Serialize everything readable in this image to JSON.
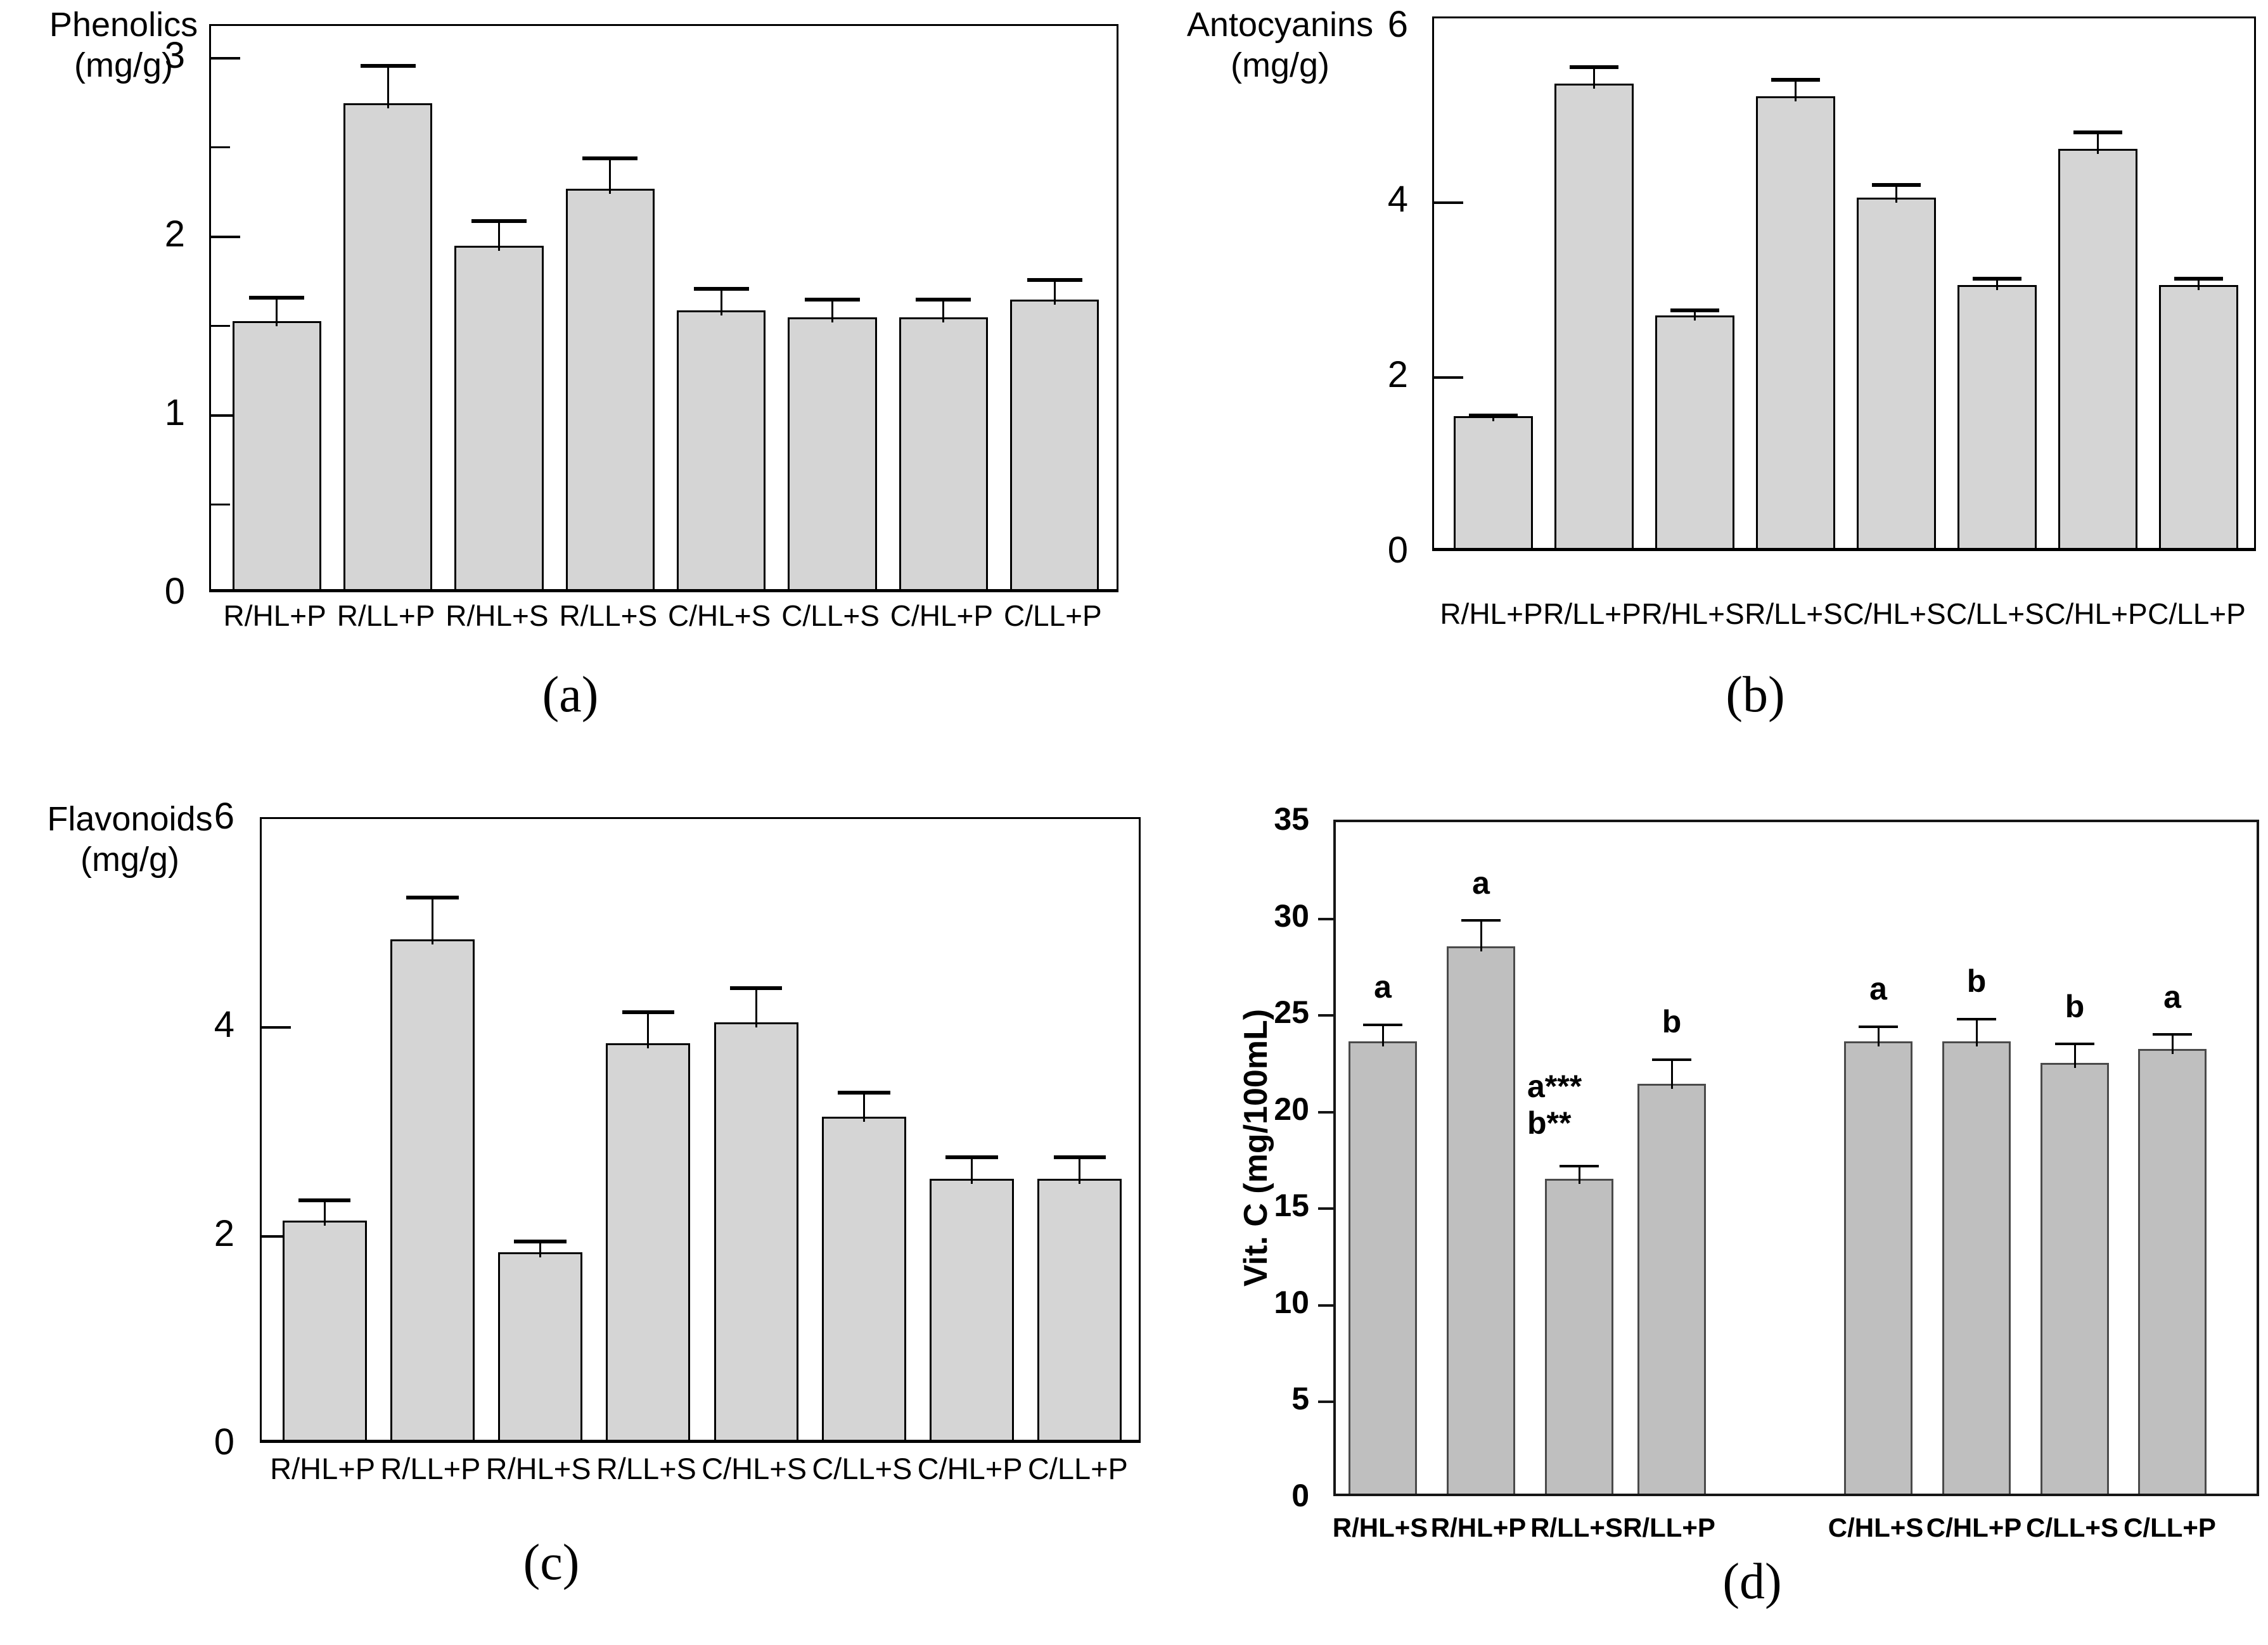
{
  "page": {
    "background": "#ffffff"
  },
  "chart_data": [
    {
      "id": "a",
      "type": "bar",
      "caption": "(a)",
      "ylabel": "Phenolics",
      "ylabel_units": "(mg/g)",
      "categories": [
        "R/HL+P",
        "R/LL+P",
        "R/HL+S",
        "R/LL+S",
        "C/HL+S",
        "C/LL+S",
        "C/HL+P",
        "C/LL+P"
      ],
      "values": [
        1.5,
        2.72,
        1.92,
        2.24,
        1.56,
        1.52,
        1.52,
        1.62
      ],
      "errors": [
        0.16,
        0.24,
        0.17,
        0.2,
        0.15,
        0.13,
        0.13,
        0.14
      ],
      "ylim": [
        0,
        3.18
      ],
      "yticks": [
        {
          "value": 3,
          "label": "3"
        },
        {
          "value": 2,
          "label": "2"
        },
        {
          "value": 1,
          "label": "1"
        },
        {
          "value": 0,
          "label": "0",
          "tick": false
        }
      ],
      "minor_ticks": [
        2.5,
        1.5,
        0.5
      ],
      "grid": false,
      "legend": null,
      "bar_fill": "#d5d5d5",
      "bar_border": "#000000"
    },
    {
      "id": "b",
      "type": "bar",
      "caption": "(b)",
      "ylabel": "Antocyanins",
      "ylabel_units": "(mg/g)",
      "categories": [
        "R/HL+P",
        "R/LL+P",
        "R/HL+S",
        "R/LL+S",
        "C/HL+S",
        "C/LL+S",
        "C/HL+P",
        "C/LL+P"
      ],
      "values": [
        1.5,
        5.3,
        2.65,
        5.15,
        4.0,
        3.0,
        4.55,
        3.0
      ],
      "errors": [
        0.07,
        0.25,
        0.12,
        0.25,
        0.2,
        0.13,
        0.25,
        0.13
      ],
      "ylim": [
        0,
        6.1
      ],
      "yticks": [
        {
          "value": 6,
          "label": "6",
          "tick": false
        },
        {
          "value": 4,
          "label": "4"
        },
        {
          "value": 2,
          "label": "2"
        },
        {
          "value": 0,
          "label": "0",
          "tick": false
        }
      ],
      "minor_ticks": [],
      "grid": false,
      "legend": null,
      "bar_fill": "#d5d5d5",
      "bar_border": "#000000"
    },
    {
      "id": "c",
      "type": "bar",
      "caption": "(c)",
      "ylabel": "Flavonoids",
      "ylabel_units": "(mg/g)",
      "categories": [
        "R/HL+P",
        "R/LL+P",
        "R/HL+S",
        "R/LL+S",
        "C/HL+S",
        "C/LL+S",
        "C/HL+P",
        "C/LL+P"
      ],
      "values": [
        2.1,
        4.8,
        1.8,
        3.8,
        4.0,
        3.1,
        2.5,
        2.5
      ],
      "errors": [
        0.25,
        0.45,
        0.15,
        0.35,
        0.38,
        0.28,
        0.26,
        0.26
      ],
      "ylim": [
        0,
        6.0
      ],
      "yticks": [
        {
          "value": 6,
          "label": "6",
          "tick": false
        },
        {
          "value": 4,
          "label": "4"
        },
        {
          "value": 2,
          "label": "2"
        },
        {
          "value": 0,
          "label": "0",
          "tick": false
        }
      ],
      "minor_ticks": [],
      "grid": false,
      "legend": null,
      "bar_fill": "#d5d5d5",
      "bar_border": "#000000"
    },
    {
      "id": "d",
      "type": "bar",
      "caption": "(d)",
      "ylabel": "Vit. C (mg/100mL)",
      "ylabel_units": "",
      "categories": [
        "R/HL+S",
        "R/HL+P",
        "R/LL+S",
        "R/LL+P",
        "C/HL+S",
        "C/HL+P",
        "C/LL+S",
        "C/LL+P"
      ],
      "values": [
        23.4,
        28.3,
        16.3,
        21.2,
        23.4,
        23.4,
        22.3,
        23.0
      ],
      "errors": [
        1.1,
        1.6,
        0.9,
        1.5,
        1.0,
        1.4,
        1.2,
        1.0
      ],
      "annotations": [
        "a",
        "a",
        "a***\nb**",
        "b",
        "a",
        "b",
        "b",
        "a"
      ],
      "ylim": [
        0,
        35
      ],
      "yticks": [
        {
          "value": 35,
          "label": "35",
          "tick": false
        },
        {
          "value": 30,
          "label": "30"
        },
        {
          "value": 25,
          "label": "25"
        },
        {
          "value": 20,
          "label": "20"
        },
        {
          "value": 15,
          "label": "15"
        },
        {
          "value": 10,
          "label": "10"
        },
        {
          "value": 5,
          "label": "5"
        },
        {
          "value": 0,
          "label": "0",
          "tick": false
        }
      ],
      "minor_ticks": [],
      "grid": false,
      "legend": null,
      "bar_fill": "#bfbfbf",
      "bar_border": "#4a4a4a"
    }
  ]
}
